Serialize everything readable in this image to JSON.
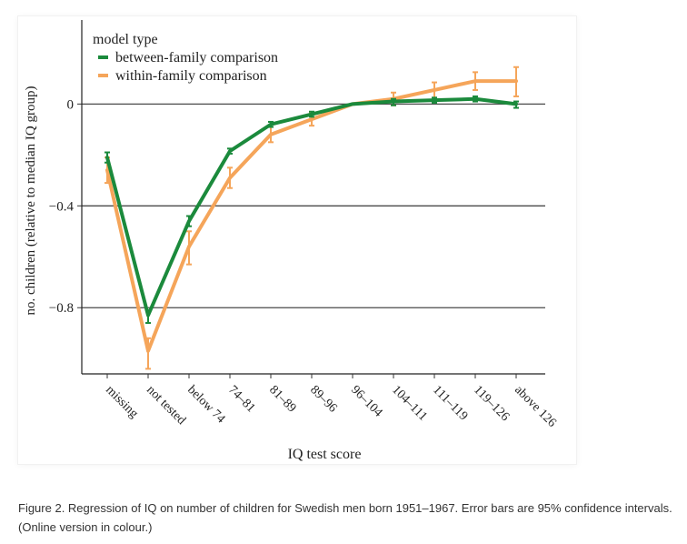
{
  "chart_data": {
    "type": "line",
    "title": "",
    "xlabel": "IQ test score",
    "ylabel": "no. children (relative to median IQ group)",
    "categories": [
      "missing",
      "not tested",
      "below 74",
      "74–81",
      "81–89",
      "89–96",
      "96–104",
      "104–111",
      "111–119",
      "119–126",
      "above 126"
    ],
    "yticks": [
      0,
      -0.4,
      -0.8
    ],
    "ytick_labels": [
      "0",
      "−0.4",
      "−0.8"
    ],
    "ylim": [
      -1.06,
      0.33
    ],
    "grid": "horizontal lines at y ticks",
    "legend": {
      "title": "model type",
      "position": "top-left"
    },
    "series": [
      {
        "name": "between-family comparison",
        "color": "#1b8a3c",
        "values": [
          -0.21,
          -0.83,
          -0.46,
          -0.185,
          -0.08,
          -0.04,
          0.0,
          0.01,
          0.015,
          0.02,
          0.0
        ],
        "ci_low": [
          -0.23,
          -0.86,
          -0.48,
          -0.195,
          -0.09,
          -0.05,
          0.0,
          -0.005,
          0.005,
          0.01,
          -0.015
        ],
        "ci_high": [
          -0.19,
          -0.81,
          -0.44,
          -0.175,
          -0.07,
          -0.03,
          0.0,
          0.02,
          0.025,
          0.03,
          0.01
        ]
      },
      {
        "name": "within-family comparison",
        "color": "#f5a55a",
        "values": [
          -0.26,
          -0.97,
          -0.56,
          -0.29,
          -0.12,
          -0.06,
          0.0,
          0.02,
          0.055,
          0.09,
          0.09
        ],
        "ci_low": [
          -0.31,
          -1.04,
          -0.63,
          -0.33,
          -0.15,
          -0.085,
          0.0,
          -0.005,
          0.025,
          0.055,
          0.03
        ],
        "ci_high": [
          -0.21,
          -0.92,
          -0.5,
          -0.25,
          -0.09,
          -0.035,
          0.0,
          0.045,
          0.085,
          0.125,
          0.145
        ]
      }
    ]
  },
  "caption": "Figure 2. Regression of IQ on number of children for Swedish men born 1951–1967. Error bars are 95% confidence intervals. (Online version in colour.)"
}
